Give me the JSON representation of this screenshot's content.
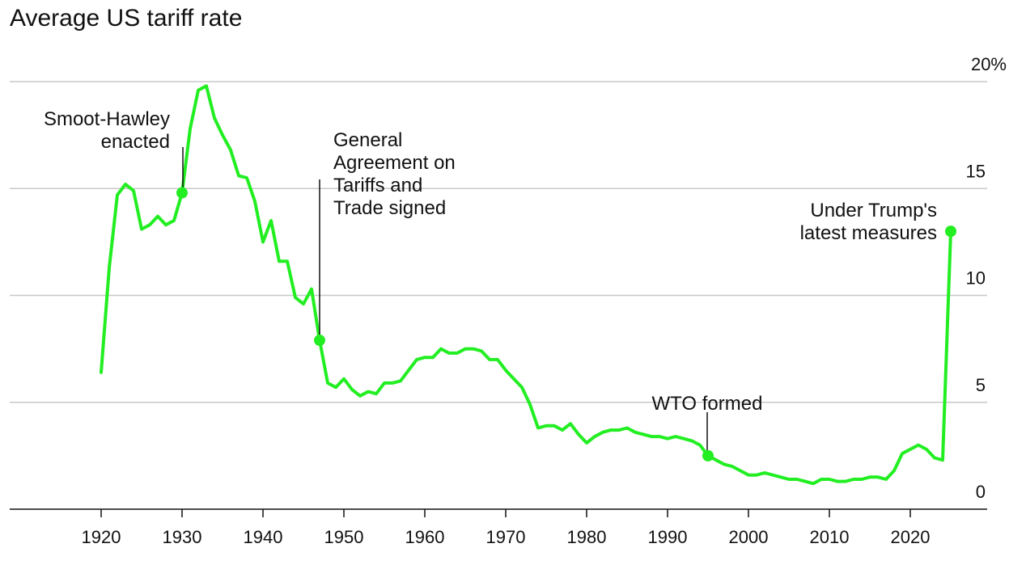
{
  "chart_data": {
    "type": "line",
    "title": "Average US tariff rate",
    "xlabel": "",
    "ylabel": "",
    "xlim": [
      1909,
      2029
    ],
    "ylim": [
      0,
      20
    ],
    "y_unit_suffix": "%",
    "grid": true,
    "line_color": "#22ee22",
    "xticks": [
      1920,
      1930,
      1940,
      1950,
      1960,
      1970,
      1980,
      1990,
      2000,
      2010,
      2020
    ],
    "yticks": [
      {
        "value": 0,
        "label": "0"
      },
      {
        "value": 5,
        "label": "5"
      },
      {
        "value": 10,
        "label": "10"
      },
      {
        "value": 15,
        "label": "15"
      },
      {
        "value": 20,
        "label": "20%"
      }
    ],
    "series": [
      {
        "values": [
          [
            1920,
            6.4
          ],
          [
            1921,
            11.3
          ],
          [
            1922,
            14.7
          ],
          [
            1923,
            15.2
          ],
          [
            1924,
            14.9
          ],
          [
            1925,
            13.1
          ],
          [
            1926,
            13.3
          ],
          [
            1927,
            13.7
          ],
          [
            1928,
            13.3
          ],
          [
            1929,
            13.5
          ],
          [
            1930,
            14.8
          ],
          [
            1931,
            17.8
          ],
          [
            1932,
            19.6
          ],
          [
            1933,
            19.8
          ],
          [
            1934,
            18.3
          ],
          [
            1935,
            17.5
          ],
          [
            1936,
            16.8
          ],
          [
            1937,
            15.6
          ],
          [
            1938,
            15.5
          ],
          [
            1939,
            14.4
          ],
          [
            1940,
            12.5
          ],
          [
            1941,
            13.5
          ],
          [
            1942,
            11.6
          ],
          [
            1943,
            11.6
          ],
          [
            1944,
            9.9
          ],
          [
            1945,
            9.6
          ],
          [
            1946,
            10.3
          ],
          [
            1947,
            7.9
          ],
          [
            1948,
            5.9
          ],
          [
            1949,
            5.7
          ],
          [
            1950,
            6.1
          ],
          [
            1951,
            5.6
          ],
          [
            1952,
            5.3
          ],
          [
            1953,
            5.5
          ],
          [
            1954,
            5.4
          ],
          [
            1955,
            5.9
          ],
          [
            1956,
            5.9
          ],
          [
            1957,
            6.0
          ],
          [
            1958,
            6.5
          ],
          [
            1959,
            7.0
          ],
          [
            1960,
            7.1
          ],
          [
            1961,
            7.1
          ],
          [
            1962,
            7.5
          ],
          [
            1963,
            7.3
          ],
          [
            1964,
            7.3
          ],
          [
            1965,
            7.5
          ],
          [
            1966,
            7.5
          ],
          [
            1967,
            7.4
          ],
          [
            1968,
            7.0
          ],
          [
            1969,
            7.0
          ],
          [
            1970,
            6.5
          ],
          [
            1971,
            6.1
          ],
          [
            1972,
            5.7
          ],
          [
            1973,
            4.9
          ],
          [
            1974,
            3.8
          ],
          [
            1975,
            3.9
          ],
          [
            1976,
            3.9
          ],
          [
            1977,
            3.7
          ],
          [
            1978,
            4.0
          ],
          [
            1979,
            3.5
          ],
          [
            1980,
            3.1
          ],
          [
            1981,
            3.4
          ],
          [
            1982,
            3.6
          ],
          [
            1983,
            3.7
          ],
          [
            1984,
            3.7
          ],
          [
            1985,
            3.8
          ],
          [
            1986,
            3.6
          ],
          [
            1987,
            3.5
          ],
          [
            1988,
            3.4
          ],
          [
            1989,
            3.4
          ],
          [
            1990,
            3.3
          ],
          [
            1991,
            3.4
          ],
          [
            1992,
            3.3
          ],
          [
            1993,
            3.2
          ],
          [
            1994,
            3.0
          ],
          [
            1995,
            2.5
          ],
          [
            1996,
            2.3
          ],
          [
            1997,
            2.1
          ],
          [
            1998,
            2.0
          ],
          [
            1999,
            1.8
          ],
          [
            2000,
            1.6
          ],
          [
            2001,
            1.6
          ],
          [
            2002,
            1.7
          ],
          [
            2003,
            1.6
          ],
          [
            2004,
            1.5
          ],
          [
            2005,
            1.4
          ],
          [
            2006,
            1.4
          ],
          [
            2007,
            1.3
          ],
          [
            2008,
            1.2
          ],
          [
            2009,
            1.4
          ],
          [
            2010,
            1.4
          ],
          [
            2011,
            1.3
          ],
          [
            2012,
            1.3
          ],
          [
            2013,
            1.4
          ],
          [
            2014,
            1.4
          ],
          [
            2015,
            1.5
          ],
          [
            2016,
            1.5
          ],
          [
            2017,
            1.4
          ],
          [
            2018,
            1.8
          ],
          [
            2019,
            2.6
          ],
          [
            2020,
            2.8
          ],
          [
            2021,
            3.0
          ],
          [
            2022,
            2.8
          ],
          [
            2023,
            2.4
          ],
          [
            2024,
            2.3
          ],
          [
            2025,
            13.0
          ]
        ]
      }
    ],
    "annotations": [
      {
        "x": 1930,
        "y": 14.8,
        "lines": [
          "Smoot-Hawley",
          "enacted"
        ],
        "anchor": "end"
      },
      {
        "x": 1947,
        "y": 7.9,
        "lines": [
          "General",
          "Agreement on",
          "Tariffs and",
          "Trade signed"
        ],
        "anchor": "start"
      },
      {
        "x": 1995,
        "y": 2.5,
        "lines": [
          "WTO formed"
        ],
        "anchor": "middle"
      },
      {
        "x": 2025,
        "y": 13.0,
        "lines": [
          "Under Trump's",
          "latest measures"
        ],
        "anchor": "end"
      }
    ]
  }
}
